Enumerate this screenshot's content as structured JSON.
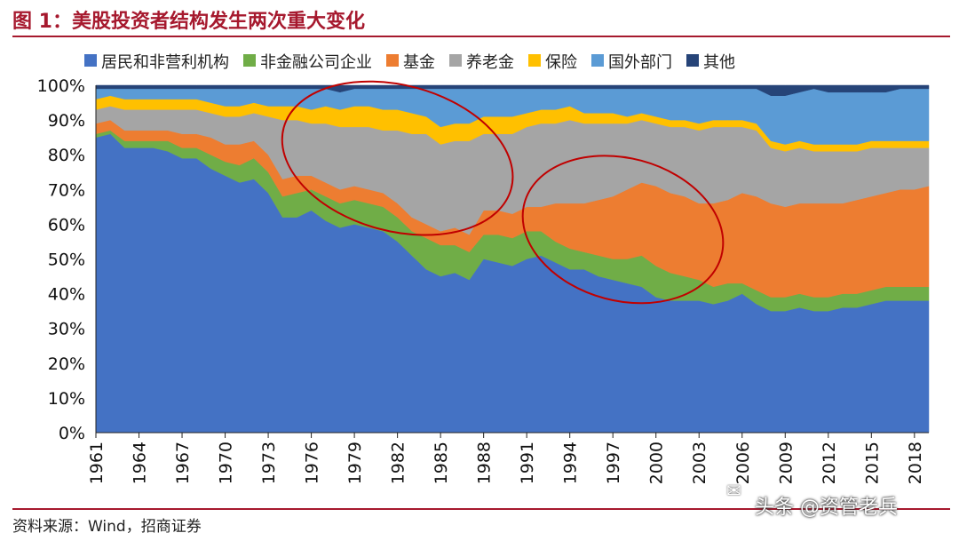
{
  "header": {
    "title": "图 1：美股投资者结构发生两次重大变化"
  },
  "footer": {
    "source": "资料来源：Wind，招商证券"
  },
  "watermark": {
    "text": "头条 @资管老兵"
  },
  "chart_data": {
    "type": "area",
    "stacked": true,
    "title": "图 1：美股投资者结构发生两次重大变化",
    "xlabel": "",
    "ylabel": "",
    "ylim": [
      0,
      100
    ],
    "y_ticks": [
      "0%",
      "10%",
      "20%",
      "30%",
      "40%",
      "50%",
      "60%",
      "70%",
      "80%",
      "90%",
      "100%"
    ],
    "x_tick_labels": [
      "1961",
      "1964",
      "1967",
      "1970",
      "1973",
      "1976",
      "1979",
      "1982",
      "1985",
      "1988",
      "1991",
      "1994",
      "1997",
      "2000",
      "2003",
      "2006",
      "2009",
      "2012",
      "2015",
      "2018"
    ],
    "x": [
      1961,
      1962,
      1963,
      1964,
      1965,
      1966,
      1967,
      1968,
      1969,
      1970,
      1971,
      1972,
      1973,
      1974,
      1975,
      1976,
      1977,
      1978,
      1979,
      1980,
      1981,
      1982,
      1983,
      1984,
      1985,
      1986,
      1987,
      1988,
      1989,
      1990,
      1991,
      1992,
      1993,
      1994,
      1995,
      1996,
      1997,
      1998,
      1999,
      2000,
      2001,
      2002,
      2003,
      2004,
      2005,
      2006,
      2007,
      2008,
      2009,
      2010,
      2011,
      2012,
      2013,
      2014,
      2015,
      2016,
      2017,
      2018,
      2019
    ],
    "legend_position": "top",
    "grid": false,
    "series": [
      {
        "name": "居民和非营利机构",
        "color": "#4472c4",
        "values": [
          85,
          86,
          82,
          82,
          82,
          81,
          79,
          79,
          76,
          74,
          72,
          73,
          69,
          62,
          62,
          64,
          61,
          59,
          60,
          59,
          58,
          55,
          51,
          47,
          45,
          46,
          44,
          50,
          49,
          48,
          50,
          51,
          49,
          47,
          47,
          45,
          44,
          43,
          42,
          39,
          38,
          38,
          38,
          37,
          38,
          40,
          37,
          35,
          35,
          36,
          35,
          35,
          36,
          36,
          37,
          38,
          38,
          38,
          38
        ]
      },
      {
        "name": "非金融公司企业",
        "color": "#70ad47",
        "values": [
          1,
          1,
          2,
          2,
          2,
          3,
          3,
          3,
          4,
          4,
          5,
          6,
          6,
          6,
          7,
          6,
          7,
          7,
          7,
          7,
          7,
          7,
          7,
          9,
          9,
          8,
          8,
          7,
          8,
          8,
          8,
          7,
          6,
          6,
          5,
          6,
          6,
          7,
          9,
          9,
          8,
          7,
          6,
          5,
          5,
          3,
          4,
          4,
          4,
          4,
          4,
          4,
          4,
          4,
          4,
          4,
          4,
          4,
          4
        ]
      },
      {
        "name": "基金",
        "color": "#ed7d31",
        "values": [
          3,
          3,
          3,
          3,
          3,
          3,
          4,
          4,
          5,
          5,
          6,
          5,
          5,
          5,
          5,
          4,
          4,
          4,
          4,
          4,
          4,
          4,
          4,
          4,
          4,
          5,
          5,
          7,
          7,
          7,
          7,
          7,
          11,
          13,
          14,
          16,
          18,
          20,
          21,
          23,
          23,
          23,
          22,
          24,
          24,
          26,
          27,
          27,
          26,
          26,
          27,
          27,
          26,
          27,
          27,
          27,
          28,
          28,
          29
        ]
      },
      {
        "name": "养老金",
        "color": "#a5a5a5",
        "values": [
          4,
          4,
          6,
          6,
          6,
          6,
          7,
          7,
          7,
          8,
          8,
          8,
          11,
          17,
          16,
          15,
          17,
          18,
          17,
          18,
          18,
          21,
          24,
          26,
          25,
          25,
          27,
          22,
          22,
          23,
          23,
          24,
          23,
          24,
          23,
          22,
          21,
          19,
          18,
          18,
          19,
          20,
          21,
          22,
          21,
          19,
          19,
          16,
          16,
          16,
          15,
          15,
          15,
          14,
          14,
          13,
          12,
          12,
          11
        ]
      },
      {
        "name": "保险",
        "color": "#ffc000",
        "values": [
          3,
          3,
          3,
          3,
          3,
          3,
          3,
          3,
          3,
          3,
          3,
          3,
          3,
          4,
          4,
          4,
          5,
          5,
          6,
          6,
          6,
          6,
          6,
          5,
          5,
          5,
          5,
          5,
          5,
          5,
          4,
          4,
          4,
          4,
          3,
          3,
          3,
          2,
          2,
          2,
          2,
          2,
          2,
          2,
          2,
          2,
          2,
          2,
          2,
          2,
          2,
          2,
          2,
          2,
          2,
          2,
          2,
          2,
          2
        ]
      },
      {
        "name": "国外部门",
        "color": "#5b9bd5",
        "values": [
          3,
          2,
          3,
          3,
          3,
          3,
          3,
          3,
          4,
          5,
          5,
          4,
          5,
          5,
          5,
          6,
          5,
          5,
          5,
          5,
          6,
          6,
          7,
          8,
          11,
          10,
          10,
          8,
          8,
          8,
          7,
          6,
          6,
          5,
          7,
          7,
          7,
          8,
          7,
          8,
          9,
          9,
          10,
          9,
          9,
          9,
          10,
          13,
          14,
          14,
          16,
          15,
          15,
          15,
          14,
          14,
          15,
          15,
          15
        ]
      },
      {
        "name": "其他",
        "color": "#264478",
        "values": [
          1,
          1,
          1,
          1,
          1,
          1,
          1,
          1,
          1,
          1,
          1,
          1,
          1,
          1,
          1,
          1,
          1,
          2,
          1,
          1,
          1,
          1,
          1,
          1,
          1,
          1,
          1,
          1,
          1,
          1,
          1,
          1,
          1,
          1,
          1,
          1,
          1,
          1,
          1,
          1,
          1,
          1,
          1,
          1,
          1,
          1,
          1,
          3,
          3,
          2,
          1,
          2,
          2,
          2,
          2,
          2,
          1,
          1,
          1
        ]
      }
    ],
    "annotations": [
      {
        "type": "ellipse",
        "color": "#c00000",
        "from_year": 1973.8,
        "to_year": 1990.2,
        "y_low": 58,
        "y_high": 100,
        "label": ""
      },
      {
        "type": "ellipse",
        "color": "#c00000",
        "from_year": 1990.6,
        "to_year": 2004.8,
        "y_low": 38,
        "y_high": 79,
        "label": ""
      }
    ]
  }
}
